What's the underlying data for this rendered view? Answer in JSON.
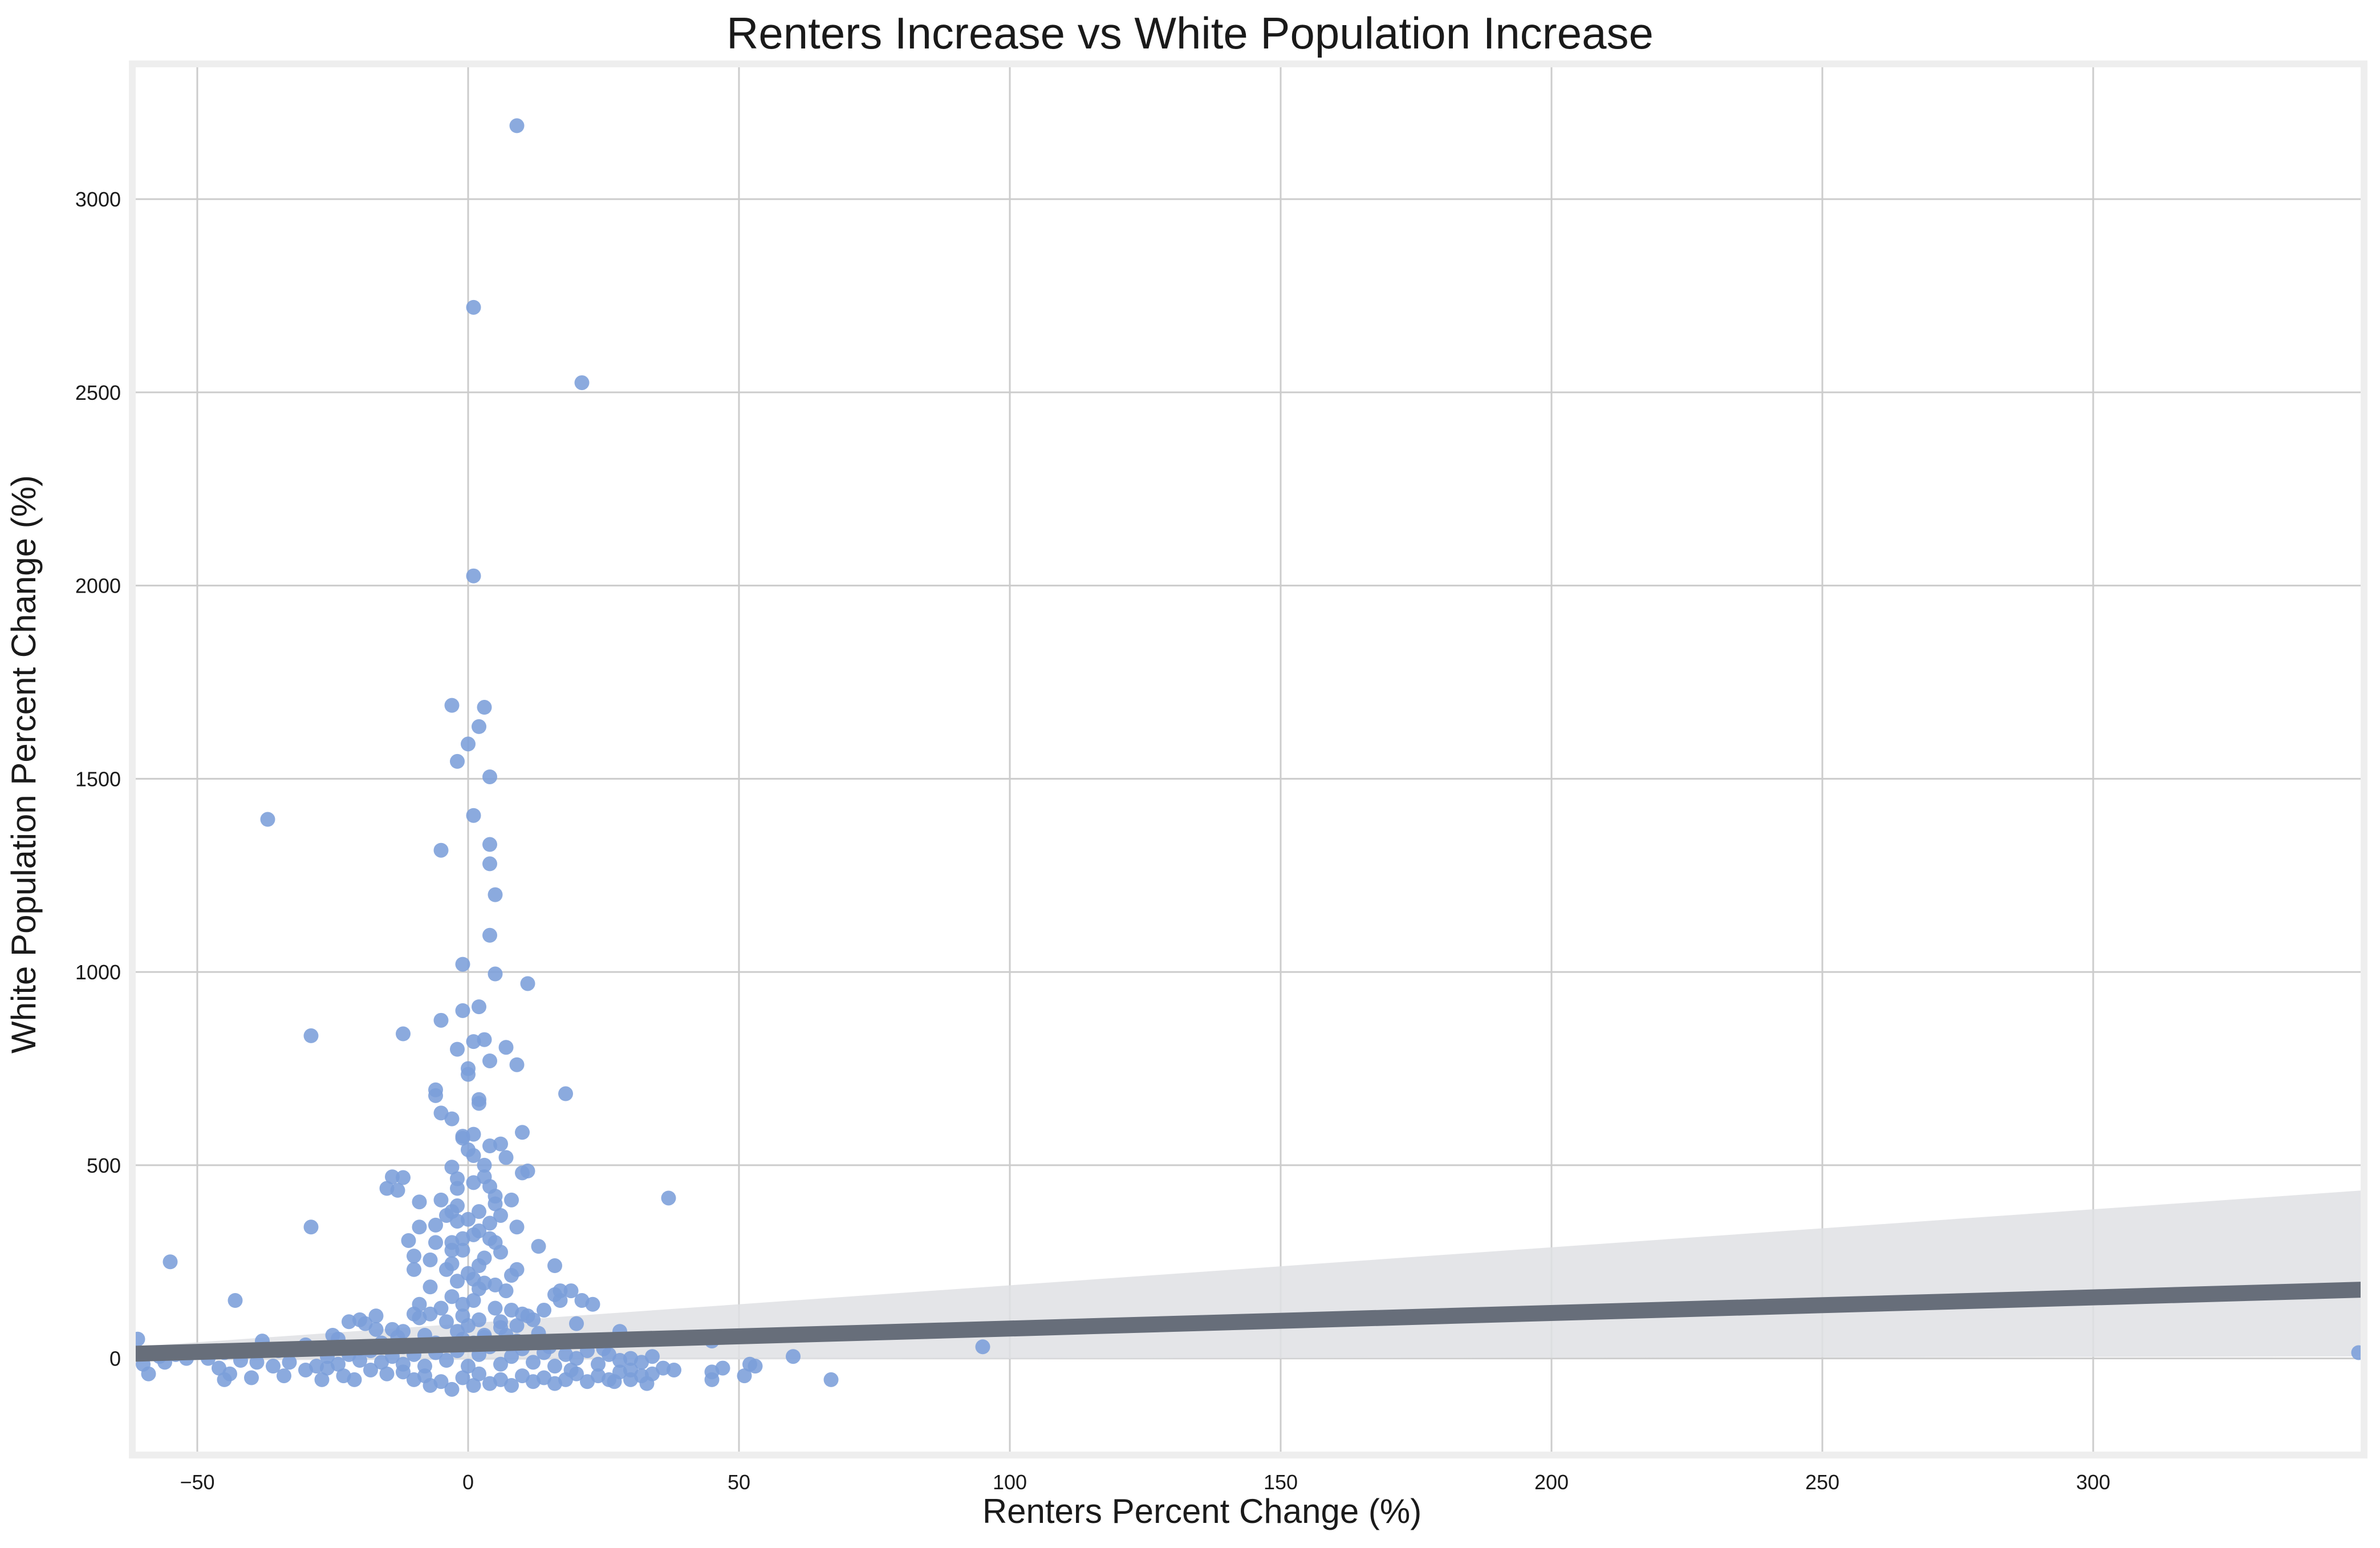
{
  "chart_data": {
    "type": "scatter",
    "title": "Renters Increase vs White Population Increase",
    "xlabel": "Renters Percent Change (%)",
    "ylabel": "White Population Percent Change (%)",
    "xlim": [
      -62,
      350
    ],
    "ylim": [
      -250,
      3350
    ],
    "x_ticks": [
      -50,
      0,
      50,
      100,
      150,
      200,
      250,
      300
    ],
    "y_ticks": [
      0,
      500,
      1000,
      1500,
      2000,
      2500,
      3000
    ],
    "grid": true,
    "colors": {
      "points": "#7b9ed9",
      "regression": "#676e7a",
      "ci_band": "#dfe1e4",
      "grid": "#cccccc",
      "frame": "#eeeeee"
    },
    "series": [
      {
        "points": [
          [
            9,
            3190
          ],
          [
            1,
            2720
          ],
          [
            21,
            2525
          ],
          [
            1,
            2025
          ],
          [
            -3,
            1690
          ],
          [
            3,
            1685
          ],
          [
            2,
            1635
          ],
          [
            0,
            1590
          ],
          [
            -2,
            1545
          ],
          [
            4,
            1505
          ],
          [
            -37,
            1395
          ],
          [
            1,
            1405
          ],
          [
            4,
            1330
          ],
          [
            -5,
            1315
          ],
          [
            4,
            1280
          ],
          [
            5,
            1200
          ],
          [
            4,
            1095
          ],
          [
            -1,
            1020
          ],
          [
            5,
            995
          ],
          [
            11,
            970
          ],
          [
            2,
            910
          ],
          [
            -1,
            900
          ],
          [
            -5,
            875
          ],
          [
            -12,
            840
          ],
          [
            -29,
            835
          ],
          [
            3,
            825
          ],
          [
            1,
            820
          ],
          [
            7,
            805
          ],
          [
            -2,
            800
          ],
          [
            4,
            770
          ],
          [
            9,
            760
          ],
          [
            0,
            750
          ],
          [
            0,
            735
          ],
          [
            -6,
            695
          ],
          [
            18,
            685
          ],
          [
            -6,
            680
          ],
          [
            2,
            670
          ],
          [
            2,
            660
          ],
          [
            -5,
            635
          ],
          [
            -3,
            620
          ],
          [
            10,
            585
          ],
          [
            1,
            580
          ],
          [
            -1,
            575
          ],
          [
            -1,
            570
          ],
          [
            6,
            555
          ],
          [
            4,
            550
          ],
          [
            1,
            525
          ],
          [
            11,
            485
          ],
          [
            10,
            480
          ],
          [
            -3,
            495
          ],
          [
            -14,
            470
          ],
          [
            -12,
            468
          ],
          [
            3,
            470
          ],
          [
            -2,
            465
          ],
          [
            -15,
            440
          ],
          [
            -13,
            435
          ],
          [
            4,
            445
          ],
          [
            37,
            415
          ],
          [
            8,
            410
          ],
          [
            -9,
            405
          ],
          [
            -5,
            410
          ],
          [
            5,
            400
          ],
          [
            -2,
            395
          ],
          [
            -3,
            380
          ],
          [
            -4,
            370
          ],
          [
            6,
            370
          ],
          [
            -2,
            355
          ],
          [
            -9,
            340
          ],
          [
            -29,
            340
          ],
          [
            -6,
            345
          ],
          [
            9,
            340
          ],
          [
            2,
            330
          ],
          [
            -11,
            305
          ],
          [
            5,
            300
          ],
          [
            13,
            290
          ],
          [
            -3,
            300
          ],
          [
            -6,
            300
          ],
          [
            -3,
            280
          ],
          [
            4,
            310
          ],
          [
            -10,
            265
          ],
          [
            -7,
            255
          ],
          [
            2,
            240
          ],
          [
            16,
            240
          ],
          [
            9,
            230
          ],
          [
            -4,
            230
          ],
          [
            -10,
            230
          ],
          [
            -55,
            250
          ],
          [
            8,
            215
          ],
          [
            1,
            205
          ],
          [
            -2,
            200
          ],
          [
            3,
            195
          ],
          [
            -7,
            185
          ],
          [
            17,
            175
          ],
          [
            19,
            175
          ],
          [
            16,
            165
          ],
          [
            -43,
            150
          ],
          [
            21,
            150
          ],
          [
            23,
            140
          ],
          [
            17,
            150
          ],
          [
            14,
            125
          ],
          [
            -10,
            115
          ],
          [
            10,
            115
          ],
          [
            11,
            110
          ],
          [
            -9,
            105
          ],
          [
            -17,
            110
          ],
          [
            -20,
            100
          ],
          [
            -22,
            95
          ],
          [
            -19,
            90
          ],
          [
            20,
            90
          ],
          [
            -4,
            95
          ],
          [
            2,
            100
          ],
          [
            5,
            130
          ],
          [
            -1,
            140
          ],
          [
            8,
            125
          ],
          [
            12,
            100
          ],
          [
            0,
            85
          ],
          [
            -14,
            75
          ],
          [
            -12,
            70
          ],
          [
            -17,
            75
          ],
          [
            -25,
            60
          ],
          [
            -24,
            50
          ],
          [
            -38,
            45
          ],
          [
            -61,
            50
          ],
          [
            45,
            45
          ],
          [
            28,
            70
          ],
          [
            -2,
            70
          ],
          [
            6,
            80
          ],
          [
            -8,
            60
          ],
          [
            3,
            60
          ],
          [
            -1,
            50
          ],
          [
            -6,
            40
          ],
          [
            1,
            40
          ],
          [
            9,
            45
          ],
          [
            -30,
            35
          ],
          [
            -12,
            30
          ],
          [
            -20,
            25
          ],
          [
            -35,
            20
          ],
          [
            -40,
            20
          ],
          [
            -45,
            15
          ],
          [
            -54,
            10
          ],
          [
            -57,
            5
          ],
          [
            -48,
            0
          ],
          [
            -42,
            -5
          ],
          [
            -39,
            -10
          ],
          [
            -36,
            -20
          ],
          [
            -33,
            -10
          ],
          [
            -60,
            -15
          ],
          [
            -56,
            -10
          ],
          [
            -52,
            0
          ],
          [
            -46,
            -25
          ],
          [
            -44,
            -40
          ],
          [
            -40,
            -50
          ],
          [
            -45,
            -55
          ],
          [
            -59,
            -40
          ],
          [
            -34,
            -45
          ],
          [
            -30,
            -30
          ],
          [
            -27,
            -55
          ],
          [
            -23,
            -45
          ],
          [
            -21,
            -55
          ],
          [
            -26,
            -25
          ],
          [
            -18,
            -30
          ],
          [
            -15,
            -40
          ],
          [
            -12,
            -35
          ],
          [
            -10,
            -55
          ],
          [
            -8,
            -45
          ],
          [
            -7,
            -70
          ],
          [
            -5,
            -60
          ],
          [
            -3,
            -80
          ],
          [
            -1,
            -50
          ],
          [
            1,
            -70
          ],
          [
            2,
            -40
          ],
          [
            4,
            -65
          ],
          [
            6,
            -55
          ],
          [
            8,
            -70
          ],
          [
            10,
            -45
          ],
          [
            12,
            -60
          ],
          [
            14,
            -50
          ],
          [
            16,
            -65
          ],
          [
            18,
            -55
          ],
          [
            20,
            -40
          ],
          [
            22,
            -60
          ],
          [
            24,
            -45
          ],
          [
            26,
            -55
          ],
          [
            28,
            -35
          ],
          [
            30,
            -30
          ],
          [
            32,
            -45
          ],
          [
            34,
            -40
          ],
          [
            36,
            -25
          ],
          [
            38,
            -30
          ],
          [
            30,
            -55
          ],
          [
            33,
            -65
          ],
          [
            27,
            -60
          ],
          [
            45,
            -35
          ],
          [
            45,
            -55
          ],
          [
            47,
            -25
          ],
          [
            51,
            -45
          ],
          [
            52,
            -15
          ],
          [
            53,
            -20
          ],
          [
            60,
            5
          ],
          [
            67,
            -55
          ],
          [
            95,
            30
          ],
          [
            349,
            15
          ],
          [
            28,
            -5
          ],
          [
            30,
            0
          ],
          [
            32,
            -10
          ],
          [
            34,
            5
          ],
          [
            26,
            10
          ],
          [
            24,
            -15
          ],
          [
            22,
            20
          ],
          [
            20,
            0
          ],
          [
            18,
            10
          ],
          [
            16,
            -20
          ],
          [
            14,
            15
          ],
          [
            12,
            -10
          ],
          [
            10,
            25
          ],
          [
            8,
            5
          ],
          [
            6,
            -15
          ],
          [
            4,
            30
          ],
          [
            2,
            10
          ],
          [
            0,
            -20
          ],
          [
            -2,
            20
          ],
          [
            -4,
            -5
          ],
          [
            -6,
            15
          ],
          [
            -8,
            -20
          ],
          [
            -10,
            10
          ],
          [
            -12,
            -15
          ],
          [
            -14,
            5
          ],
          [
            -16,
            -10
          ],
          [
            -18,
            20
          ],
          [
            -20,
            -5
          ],
          [
            -22,
            10
          ],
          [
            -24,
            -15
          ],
          [
            -26,
            5
          ],
          [
            -28,
            -20
          ],
          [
            3,
            55
          ],
          [
            -1,
            110
          ],
          [
            1,
            150
          ],
          [
            -3,
            160
          ],
          [
            2,
            180
          ],
          [
            0,
            220
          ],
          [
            3,
            260
          ],
          [
            -1,
            280
          ],
          [
            1,
            320
          ],
          [
            0,
            360
          ],
          [
            2,
            380
          ],
          [
            5,
            420
          ],
          [
            -2,
            440
          ],
          [
            3,
            500
          ],
          [
            0,
            540
          ],
          [
            7,
            520
          ],
          [
            7,
            60
          ],
          [
            9,
            85
          ],
          [
            11,
            40
          ],
          [
            13,
            65
          ],
          [
            -5,
            130
          ],
          [
            -7,
            115
          ],
          [
            5,
            190
          ],
          [
            7,
            175
          ],
          [
            -3,
            245
          ],
          [
            6,
            275
          ],
          [
            4,
            350
          ],
          [
            -1,
            310
          ],
          [
            1,
            455
          ],
          [
            6,
            95
          ],
          [
            -9,
            140
          ],
          [
            15,
            30
          ],
          [
            25,
            25
          ],
          [
            19,
            -30
          ],
          [
            -13,
            55
          ],
          [
            -16,
            40
          ]
        ]
      }
    ],
    "regression": {
      "x": [
        -62,
        350
      ],
      "y": [
        12,
        178
      ],
      "ci_upper": [
        30,
        435
      ],
      "ci_lower": [
        -5,
        5
      ]
    }
  }
}
